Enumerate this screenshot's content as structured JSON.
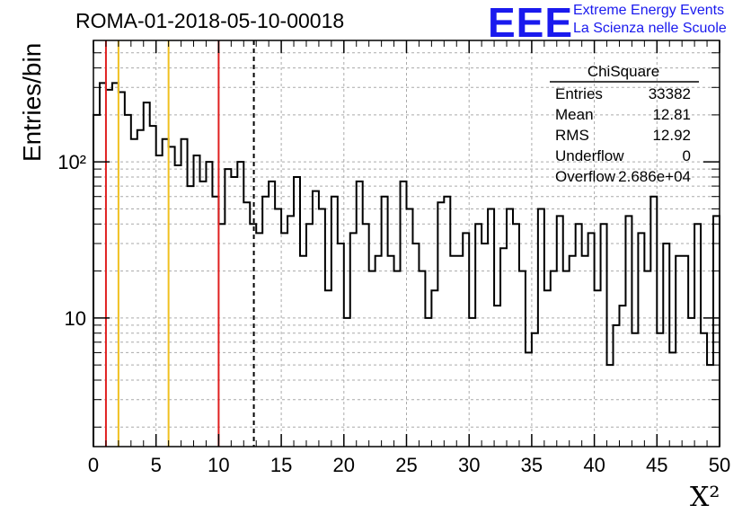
{
  "chart_data": {
    "type": "bar",
    "style": "step-histogram",
    "title": "ROMA-01-2018-05-10-00018",
    "xlabel": "X²",
    "ylabel": "Entries/bin",
    "xlim": [
      0,
      50
    ],
    "ylim": [
      1.5,
      600
    ],
    "yscale": "log",
    "grid": true,
    "bin_width": 0.5,
    "xticks": [
      "0",
      "5",
      "10",
      "15",
      "20",
      "25",
      "30",
      "35",
      "40",
      "45",
      "50"
    ],
    "yticks": [
      {
        "value": 10,
        "label": "10"
      },
      {
        "value": 100,
        "label": "10²"
      }
    ],
    "values": [
      200,
      320,
      290,
      320,
      280,
      200,
      140,
      160,
      240,
      170,
      110,
      140,
      125,
      95,
      140,
      70,
      110,
      75,
      100,
      60,
      40,
      90,
      80,
      100,
      55,
      40,
      35,
      60,
      75,
      50,
      35,
      45,
      80,
      25,
      40,
      65,
      50,
      15,
      60,
      30,
      10,
      35,
      75,
      40,
      20,
      25,
      60,
      25,
      20,
      75,
      50,
      30,
      20,
      10,
      15,
      55,
      60,
      25,
      25,
      35,
      10,
      40,
      30,
      50,
      12,
      28,
      50,
      40,
      20,
      6,
      8,
      50,
      15,
      20,
      45,
      20,
      25,
      40,
      25,
      35,
      15,
      40,
      5,
      9,
      12,
      45,
      8,
      35,
      20,
      60,
      8,
      30,
      6,
      25,
      25,
      10,
      40,
      8,
      5,
      45
    ],
    "vlines": [
      {
        "x": 1,
        "color": "#e02020",
        "style": "solid"
      },
      {
        "x": 2,
        "color": "#f0c020",
        "style": "solid"
      },
      {
        "x": 6,
        "color": "#f0c020",
        "style": "solid"
      },
      {
        "x": 10,
        "color": "#e02020",
        "style": "solid"
      },
      {
        "x": 12.81,
        "color": "#000000",
        "style": "dashed"
      }
    ],
    "legend_placement": "top-right"
  },
  "stats": {
    "title": "ChiSquare",
    "rows": [
      {
        "label": "Entries",
        "value": "33382"
      },
      {
        "label": "Mean",
        "value": "12.81"
      },
      {
        "label": "RMS",
        "value": "12.92"
      },
      {
        "label": "Underflow",
        "value": "0"
      },
      {
        "label": "Overflow",
        "value": "2.686e+04"
      }
    ]
  },
  "logo": {
    "mark": "EEE",
    "line1": "Extreme Energy Events",
    "line2": "La Scienza nelle Scuole"
  }
}
